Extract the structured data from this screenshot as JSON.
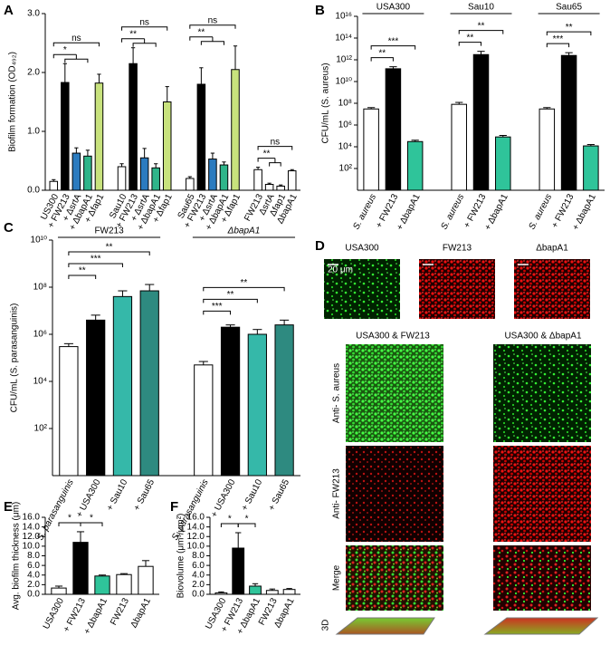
{
  "panel_letters": [
    "A",
    "B",
    "C",
    "D",
    "E",
    "F"
  ],
  "chart_data": [
    {
      "type": "bar",
      "ylabel": "Biofilm formation (OD₄₉₂)",
      "ylim": [
        0,
        3
      ],
      "yticks": [
        {
          "value": 0,
          "label": "0.0"
        },
        {
          "value": 1,
          "label": "1.0"
        },
        {
          "value": 2,
          "label": "2.0"
        },
        {
          "value": 3,
          "label": "3.0"
        }
      ],
      "groups": [
        {
          "categories": [
            "US300",
            "+ FW213",
            "+ ΔsrtA",
            "+ ΔbapA1",
            "+ Δfap1"
          ],
          "values": [
            0.15,
            1.83,
            0.63,
            0.58,
            1.82
          ],
          "errors": [
            0.03,
            0.32,
            0.09,
            0.1,
            0.15
          ],
          "colors": [
            "#ffffff",
            "#000000",
            "#2b7bbf",
            "#2fb58a",
            "#c8e27d"
          ],
          "comparisons": [
            {
              "label": "*",
              "from": 0,
              "to": [
                1,
                3
              ]
            },
            {
              "label": "ns",
              "from": 0,
              "to": 4
            }
          ]
        },
        {
          "categories": [
            "Sau10",
            "+ FW213",
            "+ ΔsrtA",
            "+ ΔbapA1",
            "+ Δfap1"
          ],
          "values": [
            0.4,
            2.15,
            0.55,
            0.38,
            1.5
          ],
          "errors": [
            0.05,
            0.27,
            0.16,
            0.07,
            0.26
          ],
          "colors": [
            "#ffffff",
            "#000000",
            "#2b7bbf",
            "#2fb58a",
            "#c8e27d"
          ],
          "comparisons": [
            {
              "label": "**",
              "from": 0,
              "to": [
                1,
                3
              ]
            },
            {
              "label": "ns",
              "from": 0,
              "to": 4
            }
          ]
        },
        {
          "categories": [
            "Sau65",
            "+ FW213",
            "+ ΔsrtA",
            "+ ΔbapA1",
            "+ Δfap1"
          ],
          "values": [
            0.2,
            1.8,
            0.53,
            0.43,
            2.05
          ],
          "errors": [
            0.03,
            0.28,
            0.1,
            0.05,
            0.4
          ],
          "colors": [
            "#ffffff",
            "#000000",
            "#2b7bbf",
            "#2fb58a",
            "#c8e27d"
          ],
          "comparisons": [
            {
              "label": "**",
              "from": 0,
              "to": [
                1,
                3
              ]
            },
            {
              "label": "ns",
              "from": 0,
              "to": 4
            }
          ]
        },
        {
          "categories": [
            "FW213",
            "ΔsrtA",
            "Δfap1",
            "ΔbapA1"
          ],
          "values": [
            0.35,
            0.1,
            0.07,
            0.33
          ],
          "errors": [
            0.04,
            0.02,
            0.02,
            0.02
          ],
          "colors": [
            "#ffffff",
            "#ffffff",
            "#ffffff",
            "#ffffff"
          ],
          "comparisons": [
            {
              "label": "**",
              "from": 0,
              "to": [
                1,
                2
              ]
            },
            {
              "label": "ns",
              "from": 0,
              "to": 3
            }
          ]
        }
      ]
    },
    {
      "type": "bar",
      "log_scale": true,
      "ylabel": "CFU/mL (S. aureus)",
      "ylim": [
        1,
        1e+16
      ],
      "yticks": [
        {
          "value": 100,
          "label": "10²"
        },
        {
          "value": 10000,
          "label": "10⁴"
        },
        {
          "value": 1000000,
          "label": "10⁶"
        },
        {
          "value": 100000000,
          "label": "10⁸"
        },
        {
          "value": 10000000000,
          "label": "10¹⁰"
        },
        {
          "value": 1000000000000,
          "label": "10¹²"
        },
        {
          "value": 100000000000000,
          "label": "10¹⁴"
        },
        {
          "value": 1e+16,
          "label": "10¹⁶"
        }
      ],
      "groups": [
        {
          "name": "USA300",
          "categories": [
            "S. aureus",
            "+ FW213",
            "+ ΔbapA1"
          ],
          "values": [
            30000000,
            150000000000,
            30000
          ],
          "errors": [
            10000000,
            80000000000,
            10000
          ],
          "colors": [
            "#ffffff",
            "#000000",
            "#2fc49a"
          ],
          "comparisons": [
            {
              "label": "**",
              "from": 0,
              "to": 1
            },
            {
              "label": "***",
              "from": 0,
              "to": 2
            }
          ]
        },
        {
          "name": "Sau10",
          "categories": [
            "S. aureus",
            "+ FW213",
            "+ ΔbapA1"
          ],
          "values": [
            80000000,
            3000000000000,
            80000
          ],
          "errors": [
            40000000,
            3000000000000,
            30000
          ],
          "colors": [
            "#ffffff",
            "#000000",
            "#2fc49a"
          ],
          "comparisons": [
            {
              "label": "**",
              "from": 0,
              "to": 1
            },
            {
              "label": "**",
              "from": 0,
              "to": 2
            }
          ]
        },
        {
          "name": "Sau65",
          "categories": [
            "S. aureus",
            "+ FW213",
            "+ ΔbapA1"
          ],
          "values": [
            30000000,
            2500000000000,
            12000
          ],
          "errors": [
            10000000,
            2000000000000,
            4000
          ],
          "colors": [
            "#ffffff",
            "#000000",
            "#2fc49a"
          ],
          "comparisons": [
            {
              "label": "***",
              "from": 0,
              "to": 1
            },
            {
              "label": "**",
              "from": 0,
              "to": 2
            }
          ]
        }
      ]
    },
    {
      "type": "bar",
      "log_scale": true,
      "ylabel": "CFU/mL (S. parasanguinis)",
      "ylim": [
        1,
        10000000000
      ],
      "yticks": [
        {
          "value": 100,
          "label": "10²"
        },
        {
          "value": 10000,
          "label": "10⁴"
        },
        {
          "value": 1000000,
          "label": "10⁶"
        },
        {
          "value": 100000000,
          "label": "10⁸"
        },
        {
          "value": 10000000000,
          "label": "10¹⁰"
        }
      ],
      "groups": [
        {
          "name": "FW213",
          "categories": [
            "S. parasanguinis",
            "+ USA300",
            "+ Sau10",
            "+ Sau65"
          ],
          "values": [
            300000,
            4000000,
            40000000,
            70000000
          ],
          "errors": [
            100000,
            2500000,
            30000000,
            60000000
          ],
          "colors": [
            "#ffffff",
            "#000000",
            "#35b8a9",
            "#2e8a80"
          ],
          "comparisons": [
            {
              "label": "**",
              "from": 0,
              "to": 1
            },
            {
              "label": "***",
              "from": 0,
              "to": 2
            },
            {
              "label": "**",
              "from": 0,
              "to": 3
            }
          ]
        },
        {
          "name": "ΔbapA1",
          "categories": [
            "S. parasanguinis",
            "+ USA300",
            "+ Sau10",
            "+ Sau65"
          ],
          "values": [
            50000,
            2000000,
            1000000,
            2500000
          ],
          "errors": [
            20000,
            500000,
            600000,
            1500000
          ],
          "colors": [
            "#ffffff",
            "#000000",
            "#35b8a9",
            "#2e8a80"
          ],
          "comparisons": [
            {
              "label": "***",
              "from": 0,
              "to": 1
            },
            {
              "label": "**",
              "from": 0,
              "to": 2
            },
            {
              "label": "**",
              "from": 0,
              "to": 3
            }
          ]
        }
      ]
    },
    {
      "type": "bar",
      "ylabel": "Avg. biofilm thickness (μm)",
      "ylim": [
        0,
        16
      ],
      "yticks": [
        {
          "value": 0,
          "label": "0.0"
        },
        {
          "value": 2,
          "label": "2.0"
        },
        {
          "value": 4,
          "label": "4.0"
        },
        {
          "value": 6,
          "label": "6.0"
        },
        {
          "value": 8,
          "label": "8.0"
        },
        {
          "value": 10,
          "label": "10.0"
        },
        {
          "value": 12,
          "label": "12.0"
        },
        {
          "value": 14,
          "label": "14.0"
        },
        {
          "value": 16,
          "label": "16.0"
        }
      ],
      "groups": [
        {
          "categories": [
            "USA300",
            "+ FW213",
            "+ ΔbapA1",
            "FW213",
            "ΔbapA1"
          ],
          "values": [
            1.3,
            10.8,
            3.8,
            4.1,
            5.8
          ],
          "errors": [
            0.4,
            2.2,
            0.2,
            0.2,
            1.2
          ],
          "colors": [
            "#ffffff",
            "#000000",
            "#2fc49a",
            "#ffffff",
            "#ffffff"
          ],
          "comparisons": [
            {
              "label": "*",
              "from": 0,
              "to": 1
            },
            {
              "label": "*",
              "from": 1,
              "to": 2
            }
          ]
        }
      ]
    },
    {
      "type": "bar",
      "ylabel": "Biovolume (μm³/μm²)",
      "ylim": [
        0,
        16
      ],
      "yticks": [
        {
          "value": 0,
          "label": "0.0"
        },
        {
          "value": 2,
          "label": "2.0"
        },
        {
          "value": 4,
          "label": "4.0"
        },
        {
          "value": 6,
          "label": "6.0"
        },
        {
          "value": 8,
          "label": "8.0"
        },
        {
          "value": 10,
          "label": "10.0"
        },
        {
          "value": 12,
          "label": "12.0"
        },
        {
          "value": 14,
          "label": "14.0"
        },
        {
          "value": 16,
          "label": "16.0"
        }
      ],
      "groups": [
        {
          "categories": [
            "USA300",
            "+ FW213",
            "+ ΔbapA1",
            "FW213",
            "ΔbapA1"
          ],
          "values": [
            0.3,
            9.6,
            1.7,
            0.8,
            1.0
          ],
          "errors": [
            0.2,
            3.2,
            0.5,
            0.3,
            0.2
          ],
          "colors": [
            "#ffffff",
            "#000000",
            "#2fc49a",
            "#ffffff",
            "#ffffff"
          ],
          "comparisons": [
            {
              "label": "*",
              "from": 0,
              "to": 1
            },
            {
              "label": "*",
              "from": 1,
              "to": 2
            }
          ]
        }
      ]
    }
  ],
  "image_panel": {
    "top_titles": [
      "USA300",
      "FW213",
      "ΔbapA1"
    ],
    "scale_bar": "20 μm",
    "section_titles": [
      "USA300 & FW213",
      "USA300 & ΔbapA1"
    ],
    "row_labels": [
      "Anti- S. aureus",
      "Anti- FW213",
      "Merge",
      "3D"
    ]
  }
}
